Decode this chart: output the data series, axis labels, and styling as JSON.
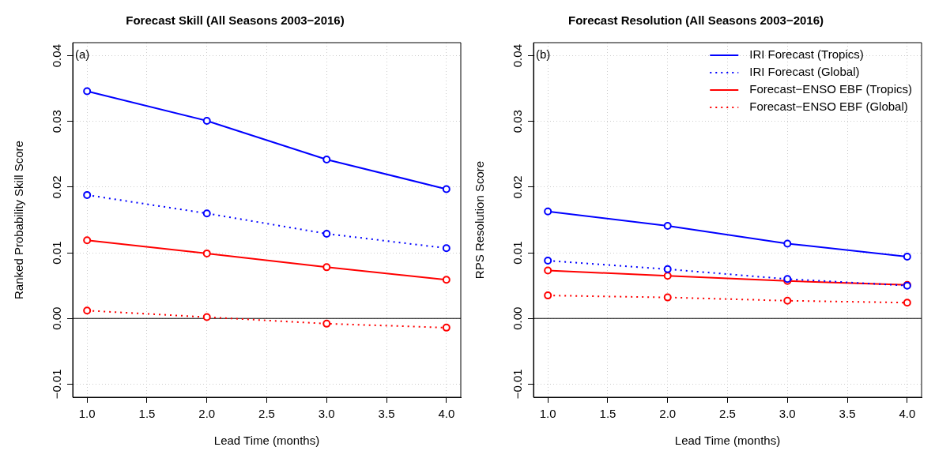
{
  "chart_data": [
    {
      "type": "line",
      "title": "Forecast Skill (All Seasons 2003−2016)",
      "xlabel": "Lead Time (months)",
      "ylabel": "Ranked Probability Skill Score",
      "x": [
        1,
        2,
        3,
        4
      ],
      "xlim": [
        0.88,
        4.12
      ],
      "xticks": [
        {
          "value": 1,
          "label": "1.0"
        },
        {
          "value": 1.5,
          "label": "1.5"
        },
        {
          "value": 2,
          "label": "2.0"
        },
        {
          "value": 2.5,
          "label": "2.5"
        },
        {
          "value": 3,
          "label": "3.0"
        },
        {
          "value": 3.5,
          "label": "3.5"
        },
        {
          "value": 4,
          "label": "4.0"
        }
      ],
      "ylim": [
        -0.012,
        0.042
      ],
      "yticks": [
        {
          "value": -0.01,
          "label": "−0.01"
        },
        {
          "value": 0,
          "label": "0.00"
        },
        {
          "value": 0.01,
          "label": "0.01"
        },
        {
          "value": 0.02,
          "label": "0.02"
        },
        {
          "value": 0.03,
          "label": "0.03"
        },
        {
          "value": 0.04,
          "label": "0.04"
        }
      ],
      "grid": true,
      "legend": false,
      "marker": "circle",
      "annotations": [
        "(a)"
      ],
      "ref_lines": [
        {
          "axis": "y",
          "value": 0,
          "color": "#000000"
        }
      ],
      "series": [
        {
          "color": "#0000ff",
          "line_style": "solid",
          "values": [
            0.0346,
            0.0301,
            0.0242,
            0.0197
          ]
        },
        {
          "color": "#0000ff",
          "line_style": "dotted",
          "values": [
            0.0188,
            0.016,
            0.0129,
            0.0107
          ]
        },
        {
          "color": "#ff0000",
          "line_style": "solid",
          "values": [
            0.0119,
            0.0099,
            0.0078,
            0.0059
          ]
        },
        {
          "color": "#ff0000",
          "line_style": "dotted",
          "values": [
            0.0012,
            0.0002,
            -0.0008,
            -0.0014
          ]
        }
      ]
    },
    {
      "type": "line",
      "title": "Forecast Resolution (All Seasons 2003−2016)",
      "xlabel": "Lead Time (months)",
      "ylabel": "RPS Resolution Score",
      "x": [
        1,
        2,
        3,
        4
      ],
      "xlim": [
        0.88,
        4.12
      ],
      "xticks": [
        {
          "value": 1,
          "label": "1.0"
        },
        {
          "value": 1.5,
          "label": "1.5"
        },
        {
          "value": 2,
          "label": "2.0"
        },
        {
          "value": 2.5,
          "label": "2.5"
        },
        {
          "value": 3,
          "label": "3.0"
        },
        {
          "value": 3.5,
          "label": "3.5"
        },
        {
          "value": 4,
          "label": "4.0"
        }
      ],
      "ylim": [
        -0.012,
        0.042
      ],
      "yticks": [
        {
          "value": -0.01,
          "label": "−0.01"
        },
        {
          "value": 0,
          "label": "0.00"
        },
        {
          "value": 0.01,
          "label": "0.01"
        },
        {
          "value": 0.02,
          "label": "0.02"
        },
        {
          "value": 0.03,
          "label": "0.03"
        },
        {
          "value": 0.04,
          "label": "0.04"
        }
      ],
      "grid": true,
      "legend": "top right",
      "marker": "circle",
      "annotations": [
        "(b)"
      ],
      "ref_lines": [
        {
          "axis": "y",
          "value": 0,
          "color": "#000000"
        }
      ],
      "series": [
        {
          "name": "IRI Forecast (Tropics)",
          "color": "#0000ff",
          "line_style": "solid",
          "values": [
            0.0163,
            0.0141,
            0.0114,
            0.0094
          ]
        },
        {
          "name": "IRI Forecast (Global)",
          "color": "#0000ff",
          "line_style": "dotted",
          "values": [
            0.0088,
            0.0075,
            0.006,
            0.005
          ]
        },
        {
          "name": "Forecast−ENSO EBF (Tropics)",
          "color": "#ff0000",
          "line_style": "solid",
          "values": [
            0.0073,
            0.0065,
            0.0057,
            0.0051
          ]
        },
        {
          "name": "Forecast−ENSO EBF (Global)",
          "color": "#ff0000",
          "line_style": "dotted",
          "values": [
            0.0035,
            0.0032,
            0.0027,
            0.0024
          ]
        }
      ]
    }
  ]
}
